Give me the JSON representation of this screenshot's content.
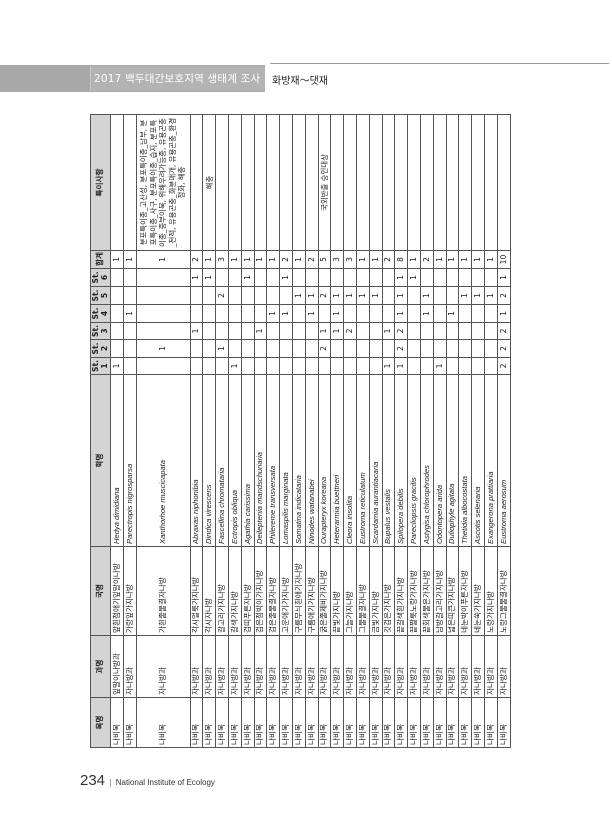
{
  "header": {
    "title": "2017 백두대간보호지역 생태계 조사",
    "section": "화방재～댓재"
  },
  "footer": {
    "page_number": "234",
    "separator": "|",
    "organization": "National Institute of Ecology"
  },
  "table": {
    "columns": [
      "목명",
      "과명",
      "국명",
      "학명",
      "St.\n1",
      "St.\n2",
      "St.\n3",
      "St.\n4",
      "St.\n5",
      "St.\n6",
      "합계",
      "특이사항"
    ],
    "rows": [
      {
        "order": "나비목",
        "family": "잎말이나방과",
        "korean": "앞흰점애기잎말이나방",
        "scientific": "Hedya dimidiana",
        "st": [
          "1",
          "",
          "",
          "",
          "",
          ""
        ],
        "total": "1",
        "remark": ""
      },
      {
        "order": "나비목",
        "family": "자나방과",
        "korean": "가랑잎가지나방",
        "scientific": "Parectropis nigrosparsa",
        "st": [
          "",
          "",
          "",
          "1",
          "",
          ""
        ],
        "total": "1",
        "remark": ""
      },
      {
        "order": "나비목",
        "family": "자나방과",
        "korean": "가흰줄물결자나방",
        "scientific": "Xanthorhoe muscicapata",
        "st": [
          "",
          "1",
          "",
          "",
          "",
          ""
        ],
        "total": "1",
        "remark": "분포특이종_고산성, 분포특이종_남부, 분포특이종_사구, 분포특이종_습지, 분포특이종_중부이북, 위해우려가능종, 유용곤충_천적, 유용곤충_화분매개, 유용곤충_환경정화, 해충"
      },
      {
        "order": "나비목",
        "family": "자나방과",
        "korean": "각시얼룩가지나방",
        "scientific": "Abraxas niphonibia",
        "st": [
          "",
          "",
          "1",
          "",
          "",
          "1"
        ],
        "total": "2",
        "remark": ""
      },
      {
        "order": "나비목",
        "family": "자나방과",
        "korean": "각시자나방",
        "scientific": "Dindica virescens",
        "st": [
          "",
          "",
          "",
          "",
          "",
          "1"
        ],
        "total": "1",
        "remark": "해충"
      },
      {
        "order": "나비목",
        "family": "자나방과",
        "korean": "갈고리가지나방",
        "scientific": "Fascellina chromataria",
        "st": [
          "",
          "1",
          "",
          "",
          "2",
          ""
        ],
        "total": "3",
        "remark": ""
      },
      {
        "order": "나비목",
        "family": "자나방과",
        "korean": "갈색가지나방",
        "scientific": "Ectropis obliqua",
        "st": [
          "1",
          "",
          "",
          "",
          "",
          ""
        ],
        "total": "1",
        "remark": ""
      },
      {
        "order": "나비목",
        "family": "자나방과",
        "korean": "검띠푸른자나방",
        "scientific": "Agathia carissima",
        "st": [
          "",
          "",
          "",
          "",
          "",
          "1"
        ],
        "total": "1",
        "remark": ""
      },
      {
        "order": "나비목",
        "family": "자나방과",
        "korean": "검은점박이가지나방",
        "scientific": "Deileptenia mandschuriaria",
        "st": [
          "",
          "",
          "1",
          "",
          "",
          ""
        ],
        "total": "1",
        "remark": ""
      },
      {
        "order": "나비목",
        "family": "자나방과",
        "korean": "검은줄물결자나방",
        "scientific": "Phileremе transversata",
        "st": [
          "",
          "",
          "",
          "1",
          "",
          ""
        ],
        "total": "1",
        "remark": ""
      },
      {
        "order": "나비목",
        "family": "자나방과",
        "korean": "고운애기가지나방",
        "scientific": "Lomaspilis marginata",
        "st": [
          "",
          "",
          "",
          "1",
          "",
          "1"
        ],
        "total": "2",
        "remark": ""
      },
      {
        "order": "나비목",
        "family": "자나방과",
        "korean": "구름무늬흰애기자나방",
        "scientific": "Somatina indicataria",
        "st": [
          "",
          "",
          "",
          "",
          "1",
          ""
        ],
        "total": "1",
        "remark": ""
      },
      {
        "order": "나비목",
        "family": "자나방과",
        "korean": "구름애기가지나방",
        "scientific": "Ninodes watanabei",
        "st": [
          "",
          "",
          "",
          "1",
          "1",
          ""
        ],
        "total": "2",
        "remark": ""
      },
      {
        "order": "나비목",
        "family": "자나방과",
        "korean": "굵은줄제비가지나방",
        "scientific": "Ourapteryx koreana",
        "st": [
          "",
          "2",
          "1",
          "",
          "2",
          ""
        ],
        "total": "5",
        "remark": "국외반출 승인대상"
      },
      {
        "order": "나비목",
        "family": "자나방과",
        "korean": "끝빛가지나방",
        "scientific": "Heterarmia buettneri",
        "st": [
          "",
          "",
          "1",
          "1",
          "1",
          ""
        ],
        "total": "3",
        "remark": ""
      },
      {
        "order": "나비목",
        "family": "자나방과",
        "korean": "그늘가지나방",
        "scientific": "Cleora insolita",
        "st": [
          "",
          "",
          "2",
          "",
          "1",
          ""
        ],
        "total": "3",
        "remark": ""
      },
      {
        "order": "나비목",
        "family": "자나방과",
        "korean": "그물물결자나방",
        "scientific": "Eustroma reticulatum",
        "st": [
          "",
          "",
          "",
          "",
          "1",
          ""
        ],
        "total": "1",
        "remark": ""
      },
      {
        "order": "나비목",
        "family": "자나방과",
        "korean": "금빛가지나방",
        "scientific": "Scardamia aurantiacaria",
        "st": [
          "",
          "",
          "",
          "",
          "1",
          ""
        ],
        "total": "1",
        "remark": ""
      },
      {
        "order": "나비목",
        "family": "자나방과",
        "korean": "깃검은가지나방",
        "scientific": "Bupalus vestalis",
        "st": [
          "1",
          "",
          "1",
          "",
          "",
          ""
        ],
        "total": "2",
        "remark": ""
      },
      {
        "order": "나비목",
        "family": "자나방과",
        "korean": "끝갈색흰가지나방",
        "scientific": "Spilopera debilis",
        "st": [
          "1",
          "2",
          "2",
          "1",
          "1",
          "1"
        ],
        "total": "8",
        "remark": ""
      },
      {
        "order": "나비목",
        "family": "자나방과",
        "korean": "끝짤룩노랑가지나방",
        "scientific": "Parecliopsis gracilis",
        "st": [
          "",
          "",
          "",
          "",
          "",
          "1"
        ],
        "total": "1",
        "remark": ""
      },
      {
        "order": "나비목",
        "family": "자나방과",
        "korean": "끝회색물은가지나방",
        "scientific": "Astygisa chlorophrodes",
        "st": [
          "",
          "",
          "",
          "1",
          "1",
          ""
        ],
        "total": "2",
        "remark": ""
      },
      {
        "order": "나비목",
        "family": "자나방과",
        "korean": "남방갈고리가지나방",
        "scientific": "Odontopera arida",
        "st": [
          "1",
          "",
          "",
          "",
          "",
          ""
        ],
        "total": "1",
        "remark": ""
      },
      {
        "order": "나비목",
        "family": "자나방과",
        "korean": "넓은띠큰가지나방",
        "scientific": "Duliophyle agitata",
        "st": [
          "",
          "",
          "",
          "1",
          "",
          ""
        ],
        "total": "1",
        "remark": ""
      },
      {
        "order": "나비목",
        "family": "자나방과",
        "korean": "네눈박이푸른자나방",
        "scientific": "Thetidia albocostata",
        "st": [
          "",
          "",
          "",
          "",
          "1",
          ""
        ],
        "total": "1",
        "remark": ""
      },
      {
        "order": "나비목",
        "family": "자나방과",
        "korean": "네눈쑥가지나방",
        "scientific": "Ascotis selenaria",
        "st": [
          "",
          "",
          "",
          "",
          "1",
          ""
        ],
        "total": "1",
        "remark": ""
      },
      {
        "order": "나비목",
        "family": "자나방과",
        "korean": "노랑가지나방",
        "scientific": "Exangerona prattiaria",
        "st": [
          "",
          "",
          "",
          "",
          "1",
          ""
        ],
        "total": "1",
        "remark": ""
      },
      {
        "order": "나비목",
        "family": "자나방과",
        "korean": "노랑그물물결자나방",
        "scientific": "Eustroma aerosum",
        "st": [
          "2",
          "2",
          "2",
          "1",
          "2",
          "1"
        ],
        "total": "10",
        "remark": ""
      }
    ]
  }
}
